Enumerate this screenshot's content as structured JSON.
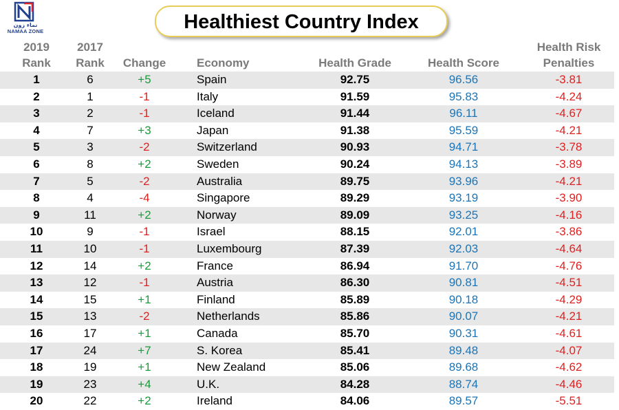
{
  "logo": {
    "arabic": "نماء زون",
    "english": "NAMAA ZONE"
  },
  "title": "Healthiest Country Index",
  "headers": {
    "rank2019": [
      "2019",
      "Rank"
    ],
    "rank2017": [
      "2017",
      "Rank"
    ],
    "change": "Change",
    "economy": "Economy",
    "grade": "Health Grade",
    "score": "Health Score",
    "penalties": [
      "Health Risk",
      "Penalties"
    ]
  },
  "colors": {
    "positive_change": "#1a9a3a",
    "negative_change": "#e02020",
    "health_score": "#1b75b8",
    "penalties": "#e02020",
    "alt_row": "#e7e7e7",
    "title_border": "#e9cc57"
  },
  "chart_data": {
    "type": "table",
    "title": "Healthiest Country Index",
    "columns": [
      "2019 Rank",
      "2017 Rank",
      "Change",
      "Economy",
      "Health Grade",
      "Health Score",
      "Health Risk Penalties"
    ],
    "rows": [
      {
        "rank2019": "1",
        "rank2017": "6",
        "change": "+5",
        "economy": "Spain",
        "grade": "92.75",
        "score": "96.56",
        "penalties": "-3.81"
      },
      {
        "rank2019": "2",
        "rank2017": "1",
        "change": "-1",
        "economy": "Italy",
        "grade": "91.59",
        "score": "95.83",
        "penalties": "-4.24"
      },
      {
        "rank2019": "3",
        "rank2017": "2",
        "change": "-1",
        "economy": "Iceland",
        "grade": "91.44",
        "score": "96.11",
        "penalties": "-4.67"
      },
      {
        "rank2019": "4",
        "rank2017": "7",
        "change": "+3",
        "economy": "Japan",
        "grade": "91.38",
        "score": "95.59",
        "penalties": "-4.21"
      },
      {
        "rank2019": "5",
        "rank2017": "3",
        "change": "-2",
        "economy": "Switzerland",
        "grade": "90.93",
        "score": "94.71",
        "penalties": "-3.78"
      },
      {
        "rank2019": "6",
        "rank2017": "8",
        "change": "+2",
        "economy": "Sweden",
        "grade": "90.24",
        "score": "94.13",
        "penalties": "-3.89"
      },
      {
        "rank2019": "7",
        "rank2017": "5",
        "change": "-2",
        "economy": "Australia",
        "grade": "89.75",
        "score": "93.96",
        "penalties": "-4.21"
      },
      {
        "rank2019": "8",
        "rank2017": "4",
        "change": "-4",
        "economy": "Singapore",
        "grade": "89.29",
        "score": "93.19",
        "penalties": "-3.90"
      },
      {
        "rank2019": "9",
        "rank2017": "11",
        "change": "+2",
        "economy": "Norway",
        "grade": "89.09",
        "score": "93.25",
        "penalties": "-4.16"
      },
      {
        "rank2019": "10",
        "rank2017": "9",
        "change": "-1",
        "economy": "Israel",
        "grade": "88.15",
        "score": "92.01",
        "penalties": "-3.86"
      },
      {
        "rank2019": "11",
        "rank2017": "10",
        "change": "-1",
        "economy": "Luxembourg",
        "grade": "87.39",
        "score": "92.03",
        "penalties": "-4.64"
      },
      {
        "rank2019": "12",
        "rank2017": "14",
        "change": "+2",
        "economy": "France",
        "grade": "86.94",
        "score": "91.70",
        "penalties": "-4.76"
      },
      {
        "rank2019": "13",
        "rank2017": "12",
        "change": "-1",
        "economy": "Austria",
        "grade": "86.30",
        "score": "90.81",
        "penalties": "-4.51"
      },
      {
        "rank2019": "14",
        "rank2017": "15",
        "change": "+1",
        "economy": "Finland",
        "grade": "85.89",
        "score": "90.18",
        "penalties": "-4.29"
      },
      {
        "rank2019": "15",
        "rank2017": "13",
        "change": "-2",
        "economy": "Netherlands",
        "grade": "85.86",
        "score": "90.07",
        "penalties": "-4.21"
      },
      {
        "rank2019": "16",
        "rank2017": "17",
        "change": "+1",
        "economy": "Canada",
        "grade": "85.70",
        "score": "90.31",
        "penalties": "-4.61"
      },
      {
        "rank2019": "17",
        "rank2017": "24",
        "change": "+7",
        "economy": "S. Korea",
        "grade": "85.41",
        "score": "89.48",
        "penalties": "-4.07"
      },
      {
        "rank2019": "18",
        "rank2017": "19",
        "change": "+1",
        "economy": "New Zealand",
        "grade": "85.06",
        "score": "89.68",
        "penalties": "-4.62"
      },
      {
        "rank2019": "19",
        "rank2017": "23",
        "change": "+4",
        "economy": "U.K.",
        "grade": "84.28",
        "score": "88.74",
        "penalties": "-4.46"
      },
      {
        "rank2019": "20",
        "rank2017": "22",
        "change": "+2",
        "economy": "Ireland",
        "grade": "84.06",
        "score": "89.57",
        "penalties": "-5.51"
      }
    ]
  }
}
